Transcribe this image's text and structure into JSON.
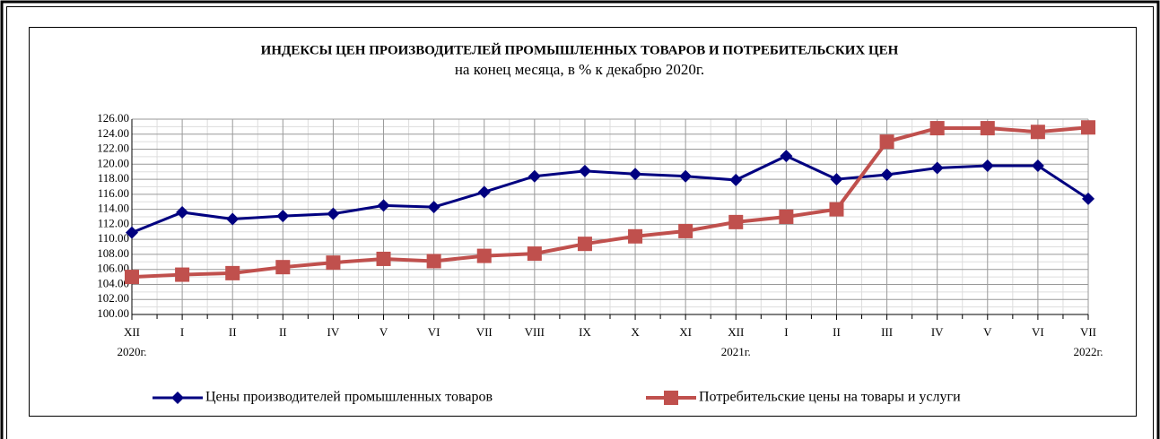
{
  "chart_data": {
    "type": "line",
    "title": "ИНДЕКСЫ ЦЕН ПРОИЗВОДИТЕЛЕЙ ПРОМЫШЛЕННЫХ ТОВАРОВ И ПОТРЕБИТЕЛЬСКИХ ЦЕН",
    "subtitle": "на конец месяца, в % к декабрю 2020г.",
    "categories": [
      "XII",
      "I",
      "II",
      "II",
      "IV",
      "V",
      "VI",
      "VII",
      "VIII",
      "IX",
      "X",
      "XI",
      "XII",
      "I",
      "II",
      "III",
      "IV",
      "V",
      "VI",
      "VII"
    ],
    "year_labels": [
      "2020г.",
      null,
      null,
      null,
      null,
      null,
      null,
      null,
      null,
      null,
      null,
      null,
      "2021г.",
      null,
      null,
      null,
      null,
      null,
      null,
      "2022г."
    ],
    "series": [
      {
        "name": "Цены производителей промышленных товаров",
        "color": "#000080",
        "marker": "diamond",
        "values": [
          110.9,
          113.6,
          112.7,
          113.1,
          113.4,
          114.5,
          114.3,
          116.3,
          118.4,
          119.1,
          118.7,
          118.4,
          117.9,
          121.1,
          118.0,
          118.6,
          119.5,
          119.8,
          119.8,
          115.4
        ]
      },
      {
        "name": "Потребительские цены на товары и услуги",
        "color": "#c0504d",
        "marker": "square",
        "values": [
          105.0,
          105.3,
          105.5,
          106.3,
          106.9,
          107.4,
          107.1,
          107.8,
          108.1,
          109.4,
          110.4,
          111.1,
          112.3,
          113.0,
          114.0,
          123.0,
          124.8,
          124.8,
          124.3,
          124.9
        ]
      }
    ],
    "ylim": [
      100,
      126
    ],
    "yticks": [
      {
        "value": 100,
        "label": "100.00"
      },
      {
        "value": 102,
        "label": "102.00"
      },
      {
        "value": 104,
        "label": "104.00"
      },
      {
        "value": 106,
        "label": "106.00"
      },
      {
        "value": 108,
        "label": "108.00"
      },
      {
        "value": 110,
        "label": "110.00"
      },
      {
        "value": 112,
        "label": "112.00"
      },
      {
        "value": 114,
        "label": "114.00"
      },
      {
        "value": 116,
        "label": "116.00"
      },
      {
        "value": 118,
        "label": "118.00"
      },
      {
        "value": 120,
        "label": "120.00"
      },
      {
        "value": 122,
        "label": "122.00"
      },
      {
        "value": 124,
        "label": "124.00"
      },
      {
        "value": 126,
        "label": "126.00"
      }
    ],
    "grid": true,
    "legend": "bottom"
  }
}
